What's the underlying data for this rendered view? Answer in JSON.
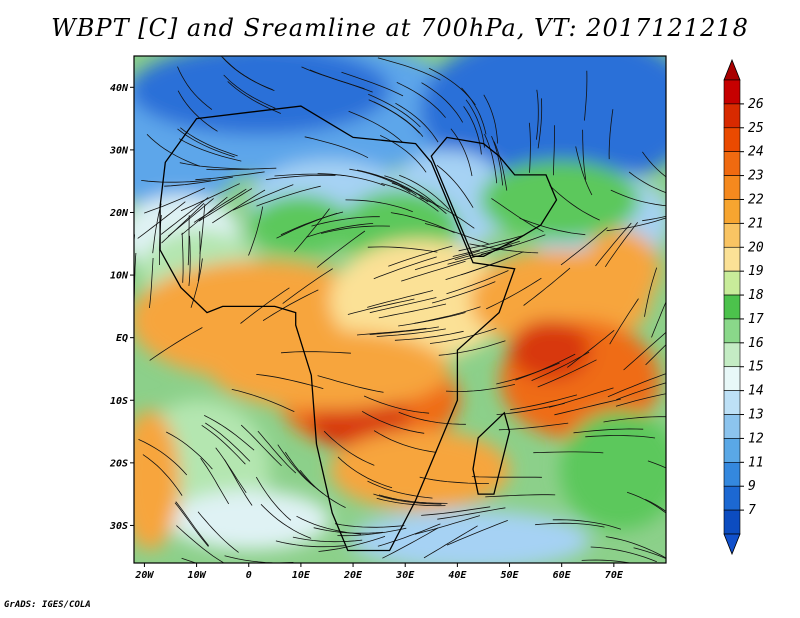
{
  "title": "WBPT [C] and Sreamline at 700hPa, VT: 2017121218",
  "credit": "GrADS: IGES/COLA",
  "lat_labels": [
    "40N",
    "30N",
    "20N",
    "10N",
    "EQ",
    "10S",
    "20S",
    "30S"
  ],
  "lat_values": [
    40,
    30,
    20,
    10,
    0,
    -10,
    -20,
    -30
  ],
  "lon_labels": [
    "20W",
    "10W",
    "0",
    "10E",
    "20E",
    "30E",
    "40E",
    "50E",
    "60E",
    "70E"
  ],
  "lon_values": [
    -20,
    -10,
    0,
    10,
    20,
    30,
    40,
    50,
    60,
    70
  ],
  "extent": {
    "lon_min": -22,
    "lon_max": 80,
    "lat_min": -36,
    "lat_max": 45
  },
  "colorbar": {
    "labels": [
      "26",
      "25",
      "24",
      "23",
      "22",
      "21",
      "20",
      "19",
      "18",
      "17",
      "16",
      "15",
      "14",
      "13",
      "12",
      "11",
      "9",
      "7"
    ],
    "colors": [
      "#c60000",
      "#d82a00",
      "#ea4a00",
      "#f06a10",
      "#f5891e",
      "#f7a530",
      "#f9c463",
      "#fbe196",
      "#c8ec9a",
      "#4cc24c",
      "#8ad88a",
      "#c4ecc4",
      "#e8f8f8",
      "#bde0f6",
      "#8cc4ee",
      "#5aa8e6",
      "#3488de",
      "#1c68d2",
      "#0c4cc0"
    ],
    "top_arrow_color": "#a80000",
    "bottom_arrow_color": "#1050cc"
  },
  "map_colors": {
    "deep_blue": "#2c70d8",
    "mid_blue": "#5da6ea",
    "light_blue": "#a6d2f4",
    "pale": "#dff2f4",
    "light_green": "#b4e6b0",
    "green": "#5cc85c",
    "yellow": "#fbe196",
    "orange": "#f7a53c",
    "dark_orange": "#ef6c14",
    "red": "#d8380a"
  }
}
